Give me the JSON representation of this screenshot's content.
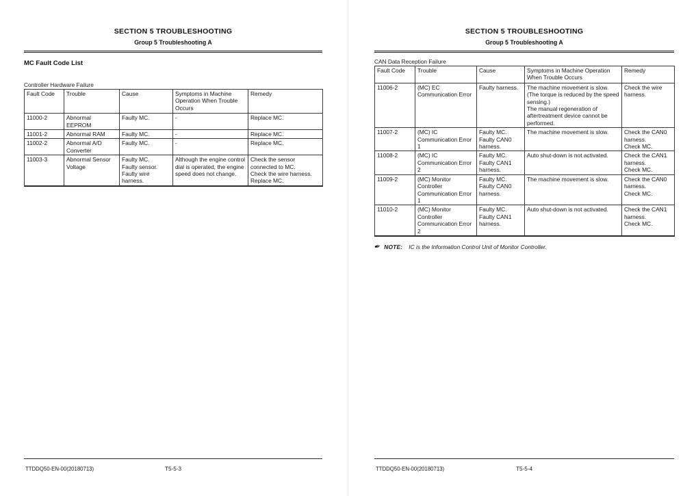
{
  "pages": {
    "left": {
      "section_title": "SECTION 5 TROUBLESHOOTING",
      "group_title": "Group 5 Troubleshooting A",
      "doc_heading": "MC Fault Code List",
      "table_label": "Controller Hardware Failure",
      "table": {
        "headers": [
          "Fault Code",
          "Trouble",
          "Cause",
          "Symptoms in Machine Operation When Trouble Occurs",
          "Remedy"
        ],
        "rows": [
          [
            "11000-2",
            "Abnormal EEPROM",
            "Faulty MC.",
            "-",
            "Replace MC."
          ],
          [
            "11001-2",
            "Abnormal RAM",
            "Faulty MC.",
            "-",
            "Replace MC."
          ],
          [
            "11002-2",
            "Abnormal A/D Converter",
            "Faulty MC.",
            "-",
            "Replace MC."
          ],
          [
            "11003-3",
            "Abnormal Sensor Voltage",
            "Faulty MC.\nFaulty sensor.\nFaulty wire harness.",
            "Although the engine control dial is operated, the engine speed does not change.",
            "Check the sensor connected to MC.\nCheck the wire harness.\nReplace MC."
          ]
        ]
      },
      "footer": {
        "doc_code": "TTDDQ50-EN-00(20180713)",
        "page_number": "T5-5-3"
      }
    },
    "right": {
      "section_title": "SECTION 5 TROUBLESHOOTING",
      "group_title": "Group 5 Troubleshooting A",
      "table_label": "CAN Data Reception Failure",
      "table": {
        "headers": [
          "Fault Code",
          "Trouble",
          "Cause",
          "Symptoms in Machine Operation When Trouble Occurs",
          "Remedy"
        ],
        "rows": [
          [
            "11006-2",
            "(MC) EC Communication Error",
            "Faulty harness.",
            "The machine movement is slow.\n(The torque is reduced by the speed sensing.)\nThe manual regeneration of aftertreatment device cannot be performed.",
            "Check the wire harness."
          ],
          [
            "11007-2",
            "(MC) IC Communication Error 1",
            "Faulty MC.\nFaulty CAN0 harness.",
            "The machine movement is slow.",
            "Check the CAN0 harness.\nCheck MC."
          ],
          [
            "11008-2",
            "(MC) IC Communication Error 2",
            "Faulty MC.\nFaulty CAN1 harness.",
            "Auto shut-down is not activated.",
            "Check the CAN1 harness.\nCheck MC."
          ],
          [
            "11009-2",
            "(MC) Monitor Controller Communication Error 1",
            "Faulty MC.\nFaulty CAN0 harness.",
            "The machine movement is slow.",
            "Check the CAN0 harness.\nCheck MC."
          ],
          [
            "11010-2",
            "(MC) Monitor Controller Communication Error 2",
            "Faulty MC.\nFaulty CAN1 harness.",
            "Auto shut-down is not activated.",
            "Check the CAN1 harness.\nCheck MC."
          ]
        ]
      },
      "note": {
        "icon": "✒",
        "label": "NOTE:",
        "text": "IC is the Information Control Unit of Monitor Controller."
      },
      "footer": {
        "doc_code": "TTDDQ50-EN-00(20180713)",
        "page_number": "T5-5-4"
      }
    }
  }
}
